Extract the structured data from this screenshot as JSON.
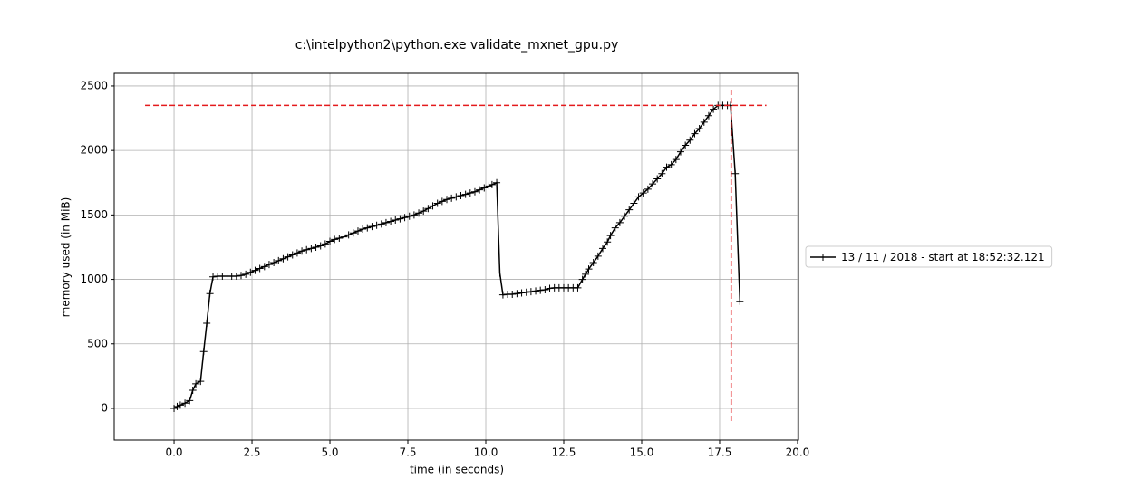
{
  "chart_data": {
    "type": "line",
    "title": "c:\\intelpython2\\python.exe validate_mxnet_gpu.py",
    "xlabel": "time (in seconds)",
    "ylabel": "memory used (in MiB)",
    "x": [
      0.0,
      0.1,
      0.2,
      0.35,
      0.5,
      0.6,
      0.7,
      0.85,
      0.95,
      1.05,
      1.15,
      1.25,
      1.4,
      1.55,
      1.7,
      1.85,
      2.0,
      2.15,
      2.3,
      2.45,
      2.6,
      2.75,
      2.9,
      3.05,
      3.2,
      3.35,
      3.5,
      3.65,
      3.8,
      3.95,
      4.1,
      4.25,
      4.4,
      4.55,
      4.7,
      4.85,
      5.0,
      5.15,
      5.3,
      5.45,
      5.6,
      5.75,
      5.9,
      6.05,
      6.2,
      6.35,
      6.5,
      6.65,
      6.8,
      6.95,
      7.1,
      7.25,
      7.4,
      7.55,
      7.7,
      7.85,
      8.0,
      8.15,
      8.3,
      8.45,
      8.6,
      8.75,
      8.9,
      9.05,
      9.2,
      9.35,
      9.5,
      9.65,
      9.8,
      9.95,
      10.1,
      10.2,
      10.35,
      10.45,
      10.55,
      10.7,
      10.85,
      11.0,
      11.15,
      11.3,
      11.45,
      11.6,
      11.75,
      11.9,
      12.05,
      12.2,
      12.35,
      12.5,
      12.65,
      12.8,
      12.95,
      13.1,
      13.2,
      13.3,
      13.45,
      13.6,
      13.75,
      13.9,
      14.0,
      14.15,
      14.3,
      14.45,
      14.6,
      14.75,
      14.9,
      15.05,
      15.2,
      15.35,
      15.5,
      15.65,
      15.8,
      15.95,
      16.1,
      16.25,
      16.4,
      16.55,
      16.7,
      16.85,
      17.0,
      17.15,
      17.3,
      17.45,
      17.6,
      17.75,
      17.85,
      18.0,
      18.15
    ],
    "series": [
      {
        "name": "13 / 11 / 2018 - start at 18:52:32.121",
        "color": "#000000",
        "values": [
          0,
          15,
          25,
          40,
          60,
          140,
          190,
          210,
          440,
          660,
          890,
          1020,
          1025,
          1025,
          1025,
          1025,
          1025,
          1030,
          1040,
          1055,
          1070,
          1085,
          1100,
          1115,
          1130,
          1145,
          1160,
          1175,
          1190,
          1205,
          1220,
          1230,
          1240,
          1250,
          1260,
          1275,
          1295,
          1310,
          1320,
          1330,
          1345,
          1360,
          1375,
          1390,
          1400,
          1410,
          1420,
          1430,
          1440,
          1450,
          1460,
          1470,
          1480,
          1490,
          1500,
          1515,
          1530,
          1550,
          1570,
          1590,
          1605,
          1620,
          1630,
          1640,
          1650,
          1660,
          1670,
          1680,
          1695,
          1710,
          1725,
          1735,
          1750,
          1050,
          880,
          885,
          885,
          890,
          895,
          900,
          905,
          910,
          915,
          920,
          930,
          935,
          935,
          935,
          935,
          935,
          935,
          1000,
          1040,
          1080,
          1130,
          1180,
          1240,
          1290,
          1340,
          1400,
          1440,
          1490,
          1540,
          1590,
          1640,
          1670,
          1700,
          1740,
          1780,
          1820,
          1870,
          1890,
          1930,
          1990,
          2040,
          2080,
          2130,
          2170,
          2220,
          2270,
          2320,
          2350,
          2350,
          2350,
          2350,
          1820,
          830
        ]
      }
    ],
    "peak_lines": {
      "color": "#e41a1c",
      "y": 2350,
      "hline_x": [
        -0.93,
        19.0
      ],
      "x": 17.87,
      "vline_y": [
        2472,
        -112
      ]
    },
    "xlim": [
      -1.92,
      20.03
    ],
    "ylim": [
      -246,
      2598
    ],
    "xticks": [
      {
        "value": 0,
        "label": "0.0"
      },
      2.5,
      {
        "value": 5,
        "label": "5.0"
      },
      7.5,
      {
        "value": 10,
        "label": "10.0"
      },
      12.5,
      {
        "value": 15,
        "label": "15.0"
      },
      17.5,
      {
        "value": 20,
        "label": "20.0"
      }
    ],
    "yticks": [
      0,
      500,
      1000,
      1500,
      2000,
      2500
    ],
    "grid": true,
    "legend": "right"
  }
}
